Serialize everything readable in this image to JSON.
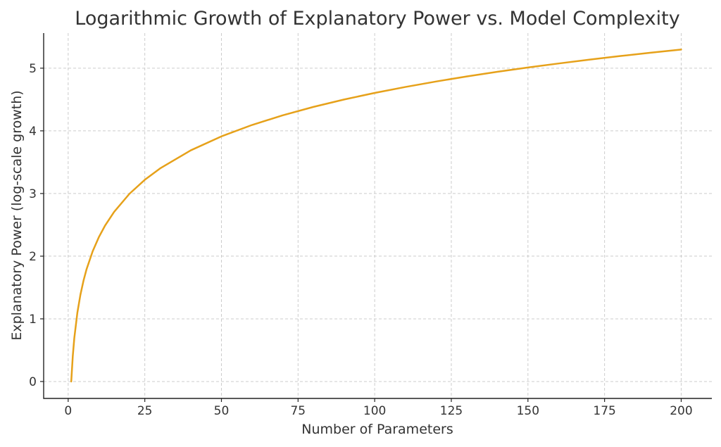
{
  "chart_data": {
    "type": "line",
    "title": "Logarithmic Growth of Explanatory Power vs. Model Complexity",
    "xlabel": "Number of Parameters",
    "ylabel": "Explanatory Power (log-scale growth)",
    "xlim": [
      -8,
      210
    ],
    "ylim": [
      -0.27,
      5.56
    ],
    "x_ticks": [
      0,
      25,
      50,
      75,
      100,
      125,
      150,
      175,
      200
    ],
    "y_ticks": [
      0,
      1,
      2,
      3,
      4,
      5
    ],
    "grid": true,
    "series": [
      {
        "color": "#e6a11a",
        "x": [
          1,
          1.5,
          2,
          3,
          4,
          5,
          6,
          8,
          10,
          12,
          15,
          20,
          25,
          30,
          40,
          50,
          60,
          70,
          80,
          90,
          100,
          110,
          120,
          130,
          140,
          150,
          160,
          170,
          180,
          190,
          200
        ],
        "y": [
          0,
          0.405,
          0.693,
          1.099,
          1.386,
          1.609,
          1.792,
          2.079,
          2.303,
          2.485,
          2.708,
          2.996,
          3.219,
          3.401,
          3.689,
          3.912,
          4.094,
          4.248,
          4.382,
          4.5,
          4.605,
          4.7,
          4.787,
          4.868,
          4.942,
          5.011,
          5.075,
          5.136,
          5.193,
          5.247,
          5.298
        ]
      }
    ]
  }
}
